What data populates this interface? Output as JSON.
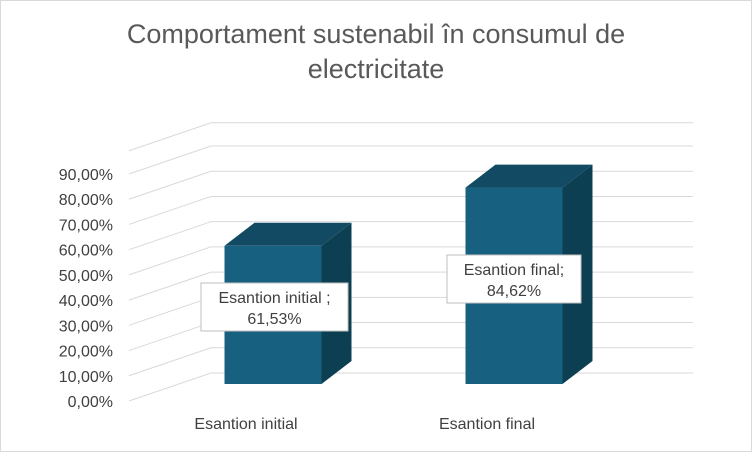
{
  "chart_data": {
    "type": "bar",
    "title": "Comportament sustenabil în consumul de electricitate",
    "categories": [
      "Esantion initial",
      "Esantion final"
    ],
    "values": [
      61.53,
      84.62
    ],
    "value_labels": [
      "61,53%",
      "84,62%"
    ],
    "data_labels": [
      {
        "line1": "Esantion initial ;",
        "line2": "61,53%"
      },
      {
        "line1": "Esantion final;",
        "line2": "84,62%"
      }
    ],
    "ylim": [
      0,
      90
    ],
    "yticks": [
      "0,00%",
      "10,00%",
      "20,00%",
      "30,00%",
      "40,00%",
      "50,00%",
      "60,00%",
      "70,00%",
      "80,00%",
      "90,00%"
    ],
    "grid": true,
    "style": "3d-column",
    "colors": {
      "front": "#17607f",
      "side": "#0d3f52",
      "top": "#114a62",
      "grid": "#d9d9d9"
    }
  }
}
